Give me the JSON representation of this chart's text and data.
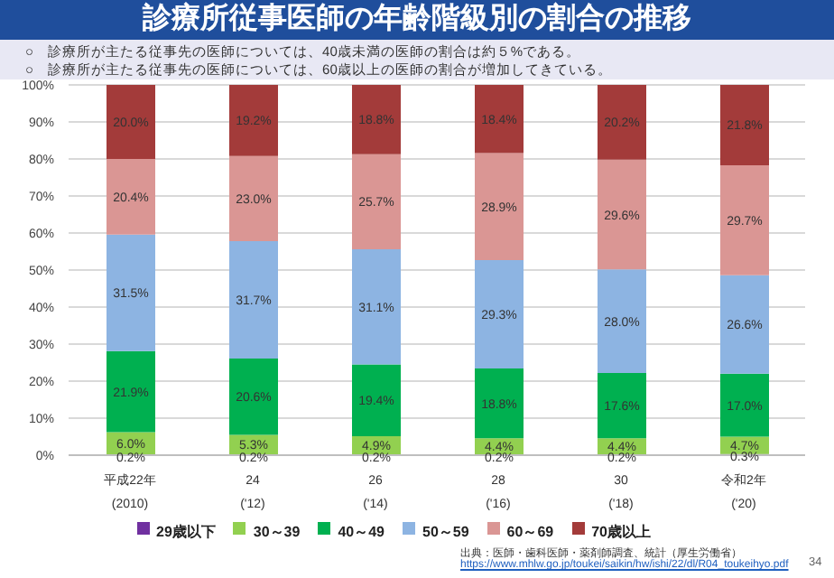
{
  "chart_data": {
    "type": "bar",
    "stacked": true,
    "title": "診療所従事医師の年齢階級別の割合の推移",
    "annotations": [
      "○　診療所が主たる従事先の医師については、40歳未満の医師の割合は約５%である。",
      "○　診療所が主たる従事先の医師については、60歳以上の医師の割合が増加してきている。",
      "出典：医師・歯科医師・薬剤師調査、統計（厚生労働省）",
      "https://www.mhlw.go.jp/toukei/saikin/hw/ishi/22/dl/R04_toukeihyo.pdf",
      "34"
    ],
    "categories": [
      "平成22年\n(2010)",
      "24\n('12)",
      "26\n('14)",
      "28\n('16)",
      "30\n('18)",
      "令和2年\n('20)"
    ],
    "series": [
      {
        "name": "29歳以下",
        "color": "#7030a0",
        "values": [
          0.2,
          0.2,
          0.2,
          0.2,
          0.2,
          0.3
        ],
        "value_labels": [
          "0.2%",
          "0.2%",
          "0.2%",
          "0.2%",
          "0.2%",
          "0.3%"
        ]
      },
      {
        "name": "30～39",
        "color": "#92d050",
        "values": [
          6.0,
          5.3,
          4.9,
          4.4,
          4.4,
          4.7
        ],
        "value_labels": [
          "6.0%",
          "5.3%",
          "4.9%",
          "4.4%",
          "4.4%",
          "4.7%"
        ]
      },
      {
        "name": "40～49",
        "color": "#00b050",
        "values": [
          21.9,
          20.6,
          19.4,
          18.8,
          17.6,
          17.0
        ],
        "value_labels": [
          "21.9%",
          "20.6%",
          "19.4%",
          "18.8%",
          "17.6%",
          "17.0%"
        ]
      },
      {
        "name": "50～59",
        "color": "#8db4e2",
        "values": [
          31.5,
          31.7,
          31.1,
          29.3,
          28.0,
          26.6
        ],
        "value_labels": [
          "31.5%",
          "31.7%",
          "31.1%",
          "29.3%",
          "28.0%",
          "26.6%"
        ]
      },
      {
        "name": "60～69",
        "color": "#da9694",
        "values": [
          20.4,
          23.0,
          25.7,
          28.9,
          29.6,
          29.7
        ],
        "value_labels": [
          "20.4%",
          "23.0%",
          "25.7%",
          "28.9%",
          "29.6%",
          "29.7%"
        ]
      },
      {
        "name": "70歳以上",
        "color": "#a33b3a",
        "values": [
          20.0,
          19.2,
          18.8,
          18.4,
          20.2,
          21.8
        ],
        "value_labels": [
          "20.0%",
          "19.2%",
          "18.8%",
          "18.4%",
          "20.2%",
          "21.8%"
        ]
      }
    ],
    "ylim": [
      0,
      100
    ],
    "yticks": [
      {
        "value": 0,
        "label": "0%"
      },
      {
        "value": 10,
        "label": "10%"
      },
      {
        "value": 20,
        "label": "20%"
      },
      {
        "value": 30,
        "label": "30%"
      },
      {
        "value": 40,
        "label": "40%"
      },
      {
        "value": 50,
        "label": "50%"
      },
      {
        "value": 60,
        "label": "60%"
      },
      {
        "value": 70,
        "label": "70%"
      },
      {
        "value": 80,
        "label": "80%"
      },
      {
        "value": 90,
        "label": "90%"
      },
      {
        "value": 100,
        "label": "100%"
      }
    ],
    "grid": "y",
    "legend": "bottom"
  }
}
